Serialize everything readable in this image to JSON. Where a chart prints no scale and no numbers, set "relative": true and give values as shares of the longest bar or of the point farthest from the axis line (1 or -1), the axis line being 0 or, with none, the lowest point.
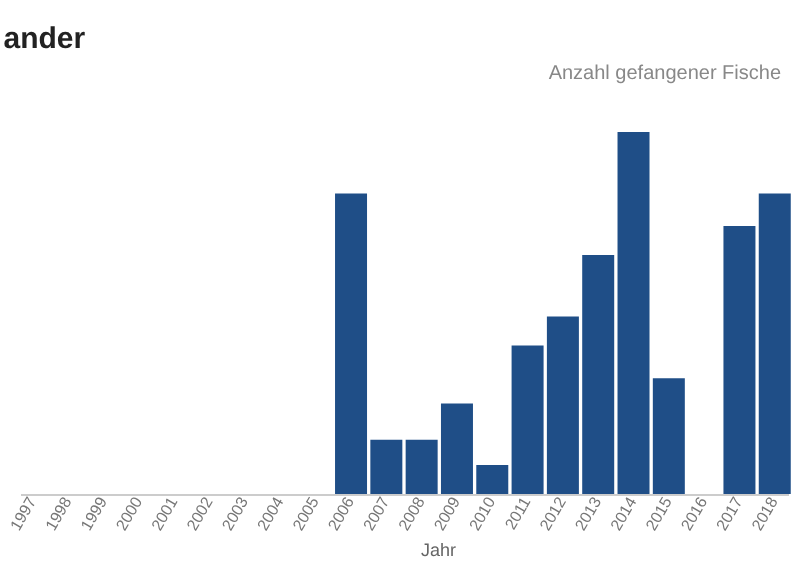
{
  "chart_data": {
    "type": "bar",
    "title": "ander",
    "ylabel": "Anzahl gefangener Fische",
    "xlabel": "Jahr",
    "categories": [
      "1997",
      "1998",
      "1999",
      "2000",
      "2001",
      "2002",
      "2003",
      "2004",
      "2005",
      "2006",
      "2007",
      "2008",
      "2009",
      "2010",
      "2011",
      "2012",
      "2013",
      "2014",
      "2015",
      "2016",
      "2017",
      "2018"
    ],
    "values": [
      null,
      null,
      null,
      null,
      null,
      null,
      null,
      null,
      null,
      0.83,
      0.15,
      0.15,
      0.25,
      0.08,
      0.41,
      0.49,
      0.66,
      1,
      0.32,
      null,
      0.74,
      0.83
    ],
    "color": "#1f4e87",
    "relative": true
  }
}
